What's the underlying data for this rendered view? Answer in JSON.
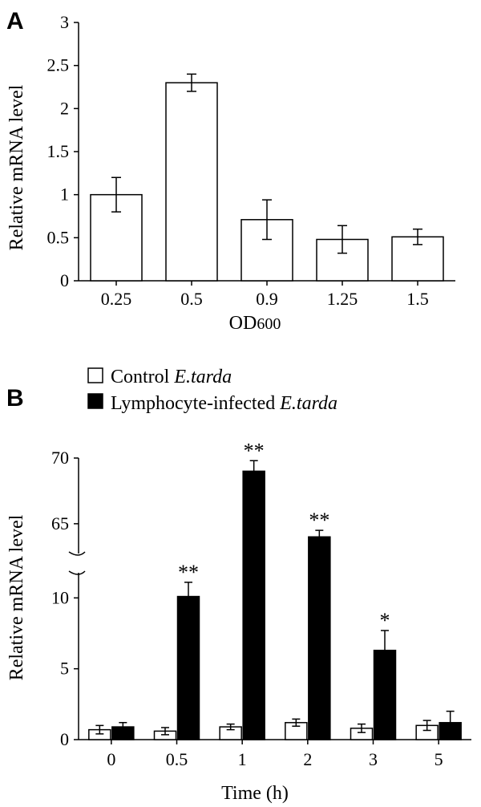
{
  "chart_data": [
    {
      "panel": "A",
      "type": "bar",
      "categories": [
        "0.25",
        "0.5",
        "0.9",
        "1.25",
        "1.5"
      ],
      "values": [
        1.0,
        2.3,
        0.71,
        0.48,
        0.51
      ],
      "errors": [
        0.2,
        0.1,
        0.23,
        0.16,
        0.09
      ],
      "xlabel": "OD",
      "xlabel_sub": "600",
      "ylabel": "Relative mRNA level",
      "ylim": [
        0,
        3
      ],
      "yticks": [
        "0",
        "0.5",
        "1",
        "1.5",
        "2",
        "2.5",
        "3"
      ],
      "bar_color": "#ffffff",
      "grid": false
    },
    {
      "panel": "B",
      "type": "bar",
      "categories": [
        "0",
        "0.5",
        "1",
        "2",
        "3",
        "5"
      ],
      "series": [
        {
          "name": "Control",
          "name_italic": "E.tarda",
          "color": "#ffffff",
          "values": [
            0.7,
            0.6,
            0.9,
            1.2,
            0.8,
            1.0
          ],
          "errors": [
            0.3,
            0.25,
            0.2,
            0.25,
            0.3,
            0.35
          ]
        },
        {
          "name": "Lymphocyte-infected",
          "name_italic": "E.tarda",
          "color": "#000000",
          "values": [
            0.9,
            10.1,
            69.0,
            64.0,
            6.3,
            1.2
          ],
          "errors": [
            0.3,
            1.0,
            0.8,
            0.5,
            1.4,
            0.8
          ],
          "significance": [
            "",
            "**",
            "**",
            "**",
            "*",
            ""
          ]
        }
      ],
      "xlabel": "Time (h)",
      "ylabel": "Relative mRNA level",
      "axis_break": {
        "lower": [
          0,
          12
        ],
        "upper": [
          62,
          70
        ]
      },
      "yticks_lower": [
        "0",
        "5",
        "10"
      ],
      "yticks_upper": [
        "65",
        "70"
      ],
      "legend_position": "top-left",
      "grid": false
    }
  ]
}
